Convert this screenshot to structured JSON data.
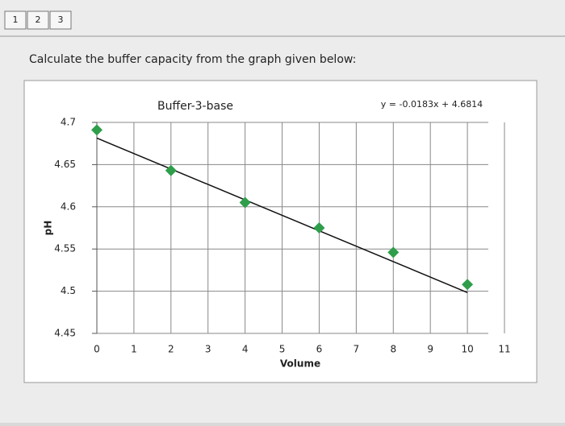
{
  "tabs": [
    "1",
    "2",
    "3"
  ],
  "question": "Calculate the buffer capacity from the graph given below:",
  "chart_data": {
    "type": "scatter",
    "title": "Buffer-3-base",
    "equation": "y = -0.0183x + 4.6814",
    "x_label": "Volume",
    "y_label": "pH",
    "x": [
      0,
      2,
      4,
      6,
      8,
      10
    ],
    "values": [
      4.691,
      4.643,
      4.605,
      4.575,
      4.546,
      4.508
    ],
    "color": "#2e9e4a",
    "trendline": {
      "slope": -0.0183,
      "intercept": 4.6814,
      "color": "#111111"
    },
    "xlim": [
      0,
      11
    ],
    "xticks": [
      0,
      1,
      2,
      3,
      4,
      5,
      6,
      7,
      8,
      9,
      10,
      11
    ],
    "ylim": [
      4.45,
      4.7
    ],
    "yticks": [
      4.45,
      4.5,
      4.55,
      4.6,
      4.65,
      4.7
    ],
    "grid": true
  }
}
